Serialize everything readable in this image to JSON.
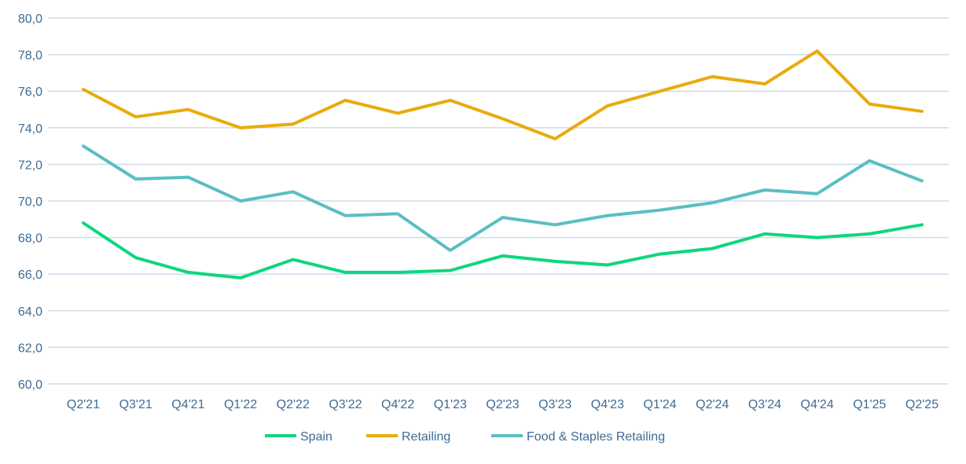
{
  "chart_data": {
    "type": "line",
    "title": "",
    "xlabel": "",
    "ylabel": "",
    "ylim": [
      60,
      80
    ],
    "yticks": [
      "60,0",
      "62,0",
      "64,0",
      "66,0",
      "68,0",
      "70,0",
      "72,0",
      "74,0",
      "76,0",
      "78,0",
      "80,0"
    ],
    "grid": true,
    "legend_position": "bottom",
    "categories": [
      "Q2'21",
      "Q3'21",
      "Q4'21",
      "Q1'22",
      "Q2'22",
      "Q3'22",
      "Q4'22",
      "Q1'23",
      "Q2'23",
      "Q3'23",
      "Q4'23",
      "Q1'24",
      "Q2'24",
      "Q3'24",
      "Q4'24",
      "Q1'25",
      "Q2'25"
    ],
    "series": [
      {
        "name": "Spain",
        "color": "#0fd67c",
        "values": [
          68.8,
          66.9,
          66.1,
          65.8,
          66.8,
          66.1,
          66.1,
          66.2,
          67.0,
          66.7,
          66.5,
          67.1,
          67.4,
          68.2,
          68.0,
          68.2,
          68.7
        ]
      },
      {
        "name": "Retailing",
        "color": "#e9ab0c",
        "values": [
          76.1,
          74.6,
          75.0,
          74.0,
          74.2,
          75.5,
          74.8,
          75.5,
          74.5,
          73.4,
          75.2,
          76.0,
          76.8,
          76.4,
          78.2,
          75.3,
          74.9
        ]
      },
      {
        "name": "Food & Staples Retailing",
        "color": "#5bbec4",
        "values": [
          73.0,
          71.2,
          71.3,
          70.0,
          70.5,
          69.2,
          69.3,
          67.3,
          69.1,
          68.7,
          69.2,
          69.5,
          69.9,
          70.6,
          70.4,
          72.2,
          71.1
        ]
      }
    ]
  }
}
